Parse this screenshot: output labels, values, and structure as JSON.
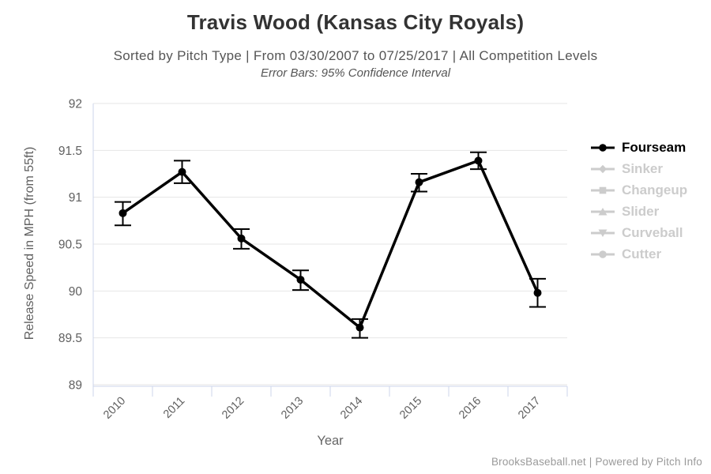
{
  "chart_data": {
    "type": "line",
    "title": "Travis Wood (Kansas City Royals)",
    "subtitle": "Sorted by Pitch Type | From 03/30/2007 to 07/25/2017 | All Competition Levels",
    "note": "Error Bars: 95% Confidence Interval",
    "xlabel": "Year",
    "ylabel": "Release Speed in MPH (from 55ft)",
    "categories": [
      "2010",
      "2011",
      "2012",
      "2013",
      "2014",
      "2015",
      "2016",
      "2017"
    ],
    "ylim": [
      89,
      92
    ],
    "yticks": [
      89,
      89.5,
      90,
      90.5,
      91,
      91.5,
      92
    ],
    "grid": true,
    "legend_position": "right",
    "error_bars": "95% Confidence Interval",
    "series": [
      {
        "name": "Fourseam",
        "marker": "circle",
        "visible": true,
        "values": [
          90.83,
          91.27,
          90.56,
          90.12,
          89.61,
          91.16,
          91.39,
          89.98
        ],
        "ci_low": [
          90.7,
          91.15,
          90.45,
          90.01,
          89.5,
          91.06,
          91.3,
          89.83
        ],
        "ci_high": [
          90.95,
          91.39,
          90.66,
          90.22,
          89.7,
          91.25,
          91.48,
          90.13
        ]
      },
      {
        "name": "Sinker",
        "marker": "diamond",
        "visible": false
      },
      {
        "name": "Changeup",
        "marker": "square",
        "visible": false
      },
      {
        "name": "Slider",
        "marker": "triangle-up",
        "visible": false
      },
      {
        "name": "Curveball",
        "marker": "triangle-down",
        "visible": false
      },
      {
        "name": "Cutter",
        "marker": "circle",
        "visible": false
      }
    ]
  },
  "footer": {
    "credit": "BrooksBaseball.net | Powered by Pitch Info"
  },
  "colors": {
    "series": "#000000",
    "inactive_legend": "#cccccc",
    "grid": "#e6e6e6",
    "axis_line": "#ccd6eb",
    "tick_text": "#606060",
    "title": "#333333",
    "subtitle": "#555555",
    "footer": "#9a9a9a"
  }
}
